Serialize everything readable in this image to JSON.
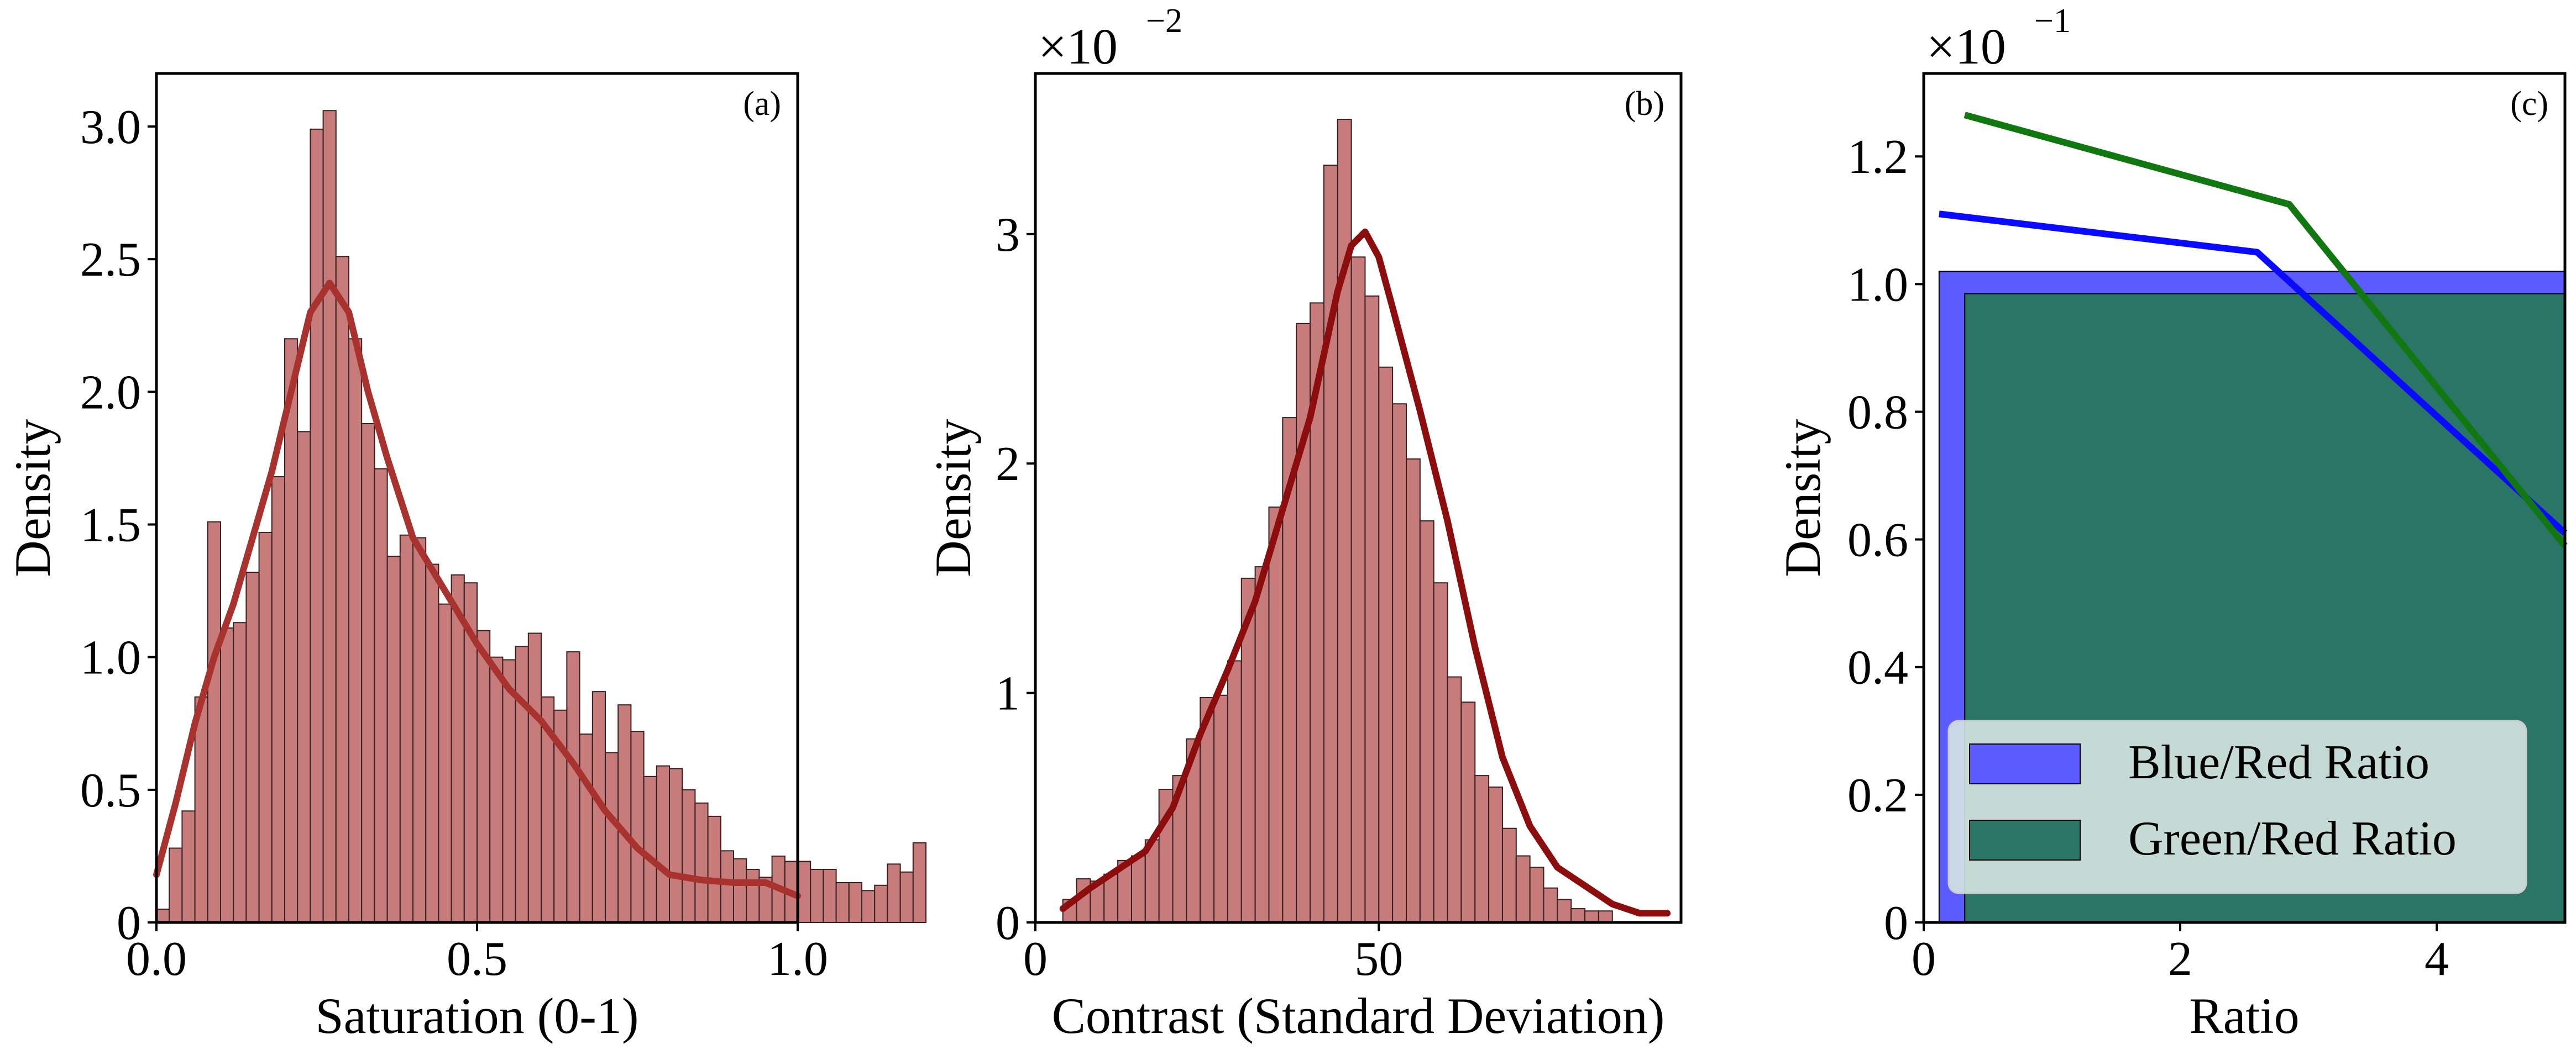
{
  "colors": {
    "hist_fill": "#c77b7b",
    "hist_edge": "#3a1f1f",
    "kde_a": "#a8322d",
    "kde_b": "#8b0d0d",
    "blue_fill": "#5b5bff",
    "green_fill": "#2a7566",
    "blue_line": "#0a0aff",
    "green_line": "#117711",
    "legend_bg": "#d6e4e1"
  },
  "chart_data": [
    {
      "type": "histogram",
      "panel_label": "(a)",
      "xlabel": "Saturation (0-1)",
      "ylabel": "Density",
      "xlim": [
        0,
        1
      ],
      "ylim": [
        0,
        3.2
      ],
      "xticks": [
        "0.0",
        "0.5",
        "1.0"
      ],
      "yticks": [
        "0",
        "0.5",
        "1.0",
        "1.5",
        "2.0",
        "2.5",
        "3.0"
      ],
      "bin_width": 0.02,
      "bin_starts_at": 0.0,
      "densities": [
        0.05,
        0.28,
        0.42,
        0.85,
        1.51,
        1.11,
        1.13,
        1.32,
        1.47,
        1.68,
        2.2,
        1.85,
        2.99,
        3.06,
        2.51,
        2.2,
        1.88,
        1.71,
        1.38,
        1.46,
        1.45,
        1.35,
        1.2,
        1.31,
        1.28,
        1.1,
        1.0,
        0.99,
        1.04,
        1.09,
        0.85,
        0.8,
        1.02,
        0.71,
        0.87,
        0.64,
        0.82,
        0.72,
        0.55,
        0.59,
        0.58,
        0.5,
        0.45,
        0.4,
        0.27,
        0.24,
        0.2,
        0.17,
        0.25,
        0.23,
        0.23,
        0.2,
        0.2,
        0.15,
        0.15,
        0.12,
        0.14,
        0.22,
        0.19,
        0.3
      ],
      "kde": {
        "x": [
          0.0,
          0.03,
          0.06,
          0.09,
          0.12,
          0.15,
          0.18,
          0.21,
          0.24,
          0.27,
          0.3,
          0.33,
          0.36,
          0.4,
          0.45,
          0.5,
          0.55,
          0.6,
          0.65,
          0.7,
          0.75,
          0.8,
          0.85,
          0.9,
          0.95,
          1.0
        ],
        "y": [
          0.18,
          0.45,
          0.75,
          1.0,
          1.2,
          1.45,
          1.7,
          2.0,
          2.3,
          2.41,
          2.3,
          2.0,
          1.75,
          1.45,
          1.25,
          1.05,
          0.88,
          0.76,
          0.6,
          0.42,
          0.28,
          0.18,
          0.16,
          0.15,
          0.15,
          0.1
        ]
      }
    },
    {
      "type": "histogram",
      "panel_label": "(b)",
      "xlabel": "Contrast (Standard Deviation)",
      "ylabel": "Density",
      "multiplier_base": "×10",
      "multiplier_exp": "−2",
      "xlim": [
        0,
        94
      ],
      "ylim": [
        0,
        3.7
      ],
      "xticks": [
        "0",
        "50"
      ],
      "yticks": [
        "0",
        "1",
        "2",
        "3"
      ],
      "bin_width": 2.0,
      "bin_starts_at": 4.0,
      "densities": [
        0.1,
        0.19,
        0.18,
        0.21,
        0.27,
        0.29,
        0.36,
        0.58,
        0.64,
        0.8,
        0.98,
        0.99,
        1.14,
        1.5,
        1.55,
        1.81,
        2.2,
        2.61,
        2.7,
        3.3,
        3.5,
        2.9,
        2.73,
        2.42,
        2.26,
        2.02,
        1.75,
        1.48,
        1.07,
        0.96,
        0.64,
        0.59,
        0.41,
        0.29,
        0.24,
        0.15,
        0.1,
        0.06,
        0.05,
        0.05
      ],
      "kde": {
        "x": [
          4,
          8,
          12,
          16,
          20,
          24,
          28,
          32,
          36,
          40,
          44,
          46,
          48,
          50,
          52,
          56,
          60,
          64,
          68,
          72,
          76,
          80,
          84,
          88,
          92
        ],
        "y": [
          0.06,
          0.15,
          0.23,
          0.31,
          0.5,
          0.82,
          1.1,
          1.4,
          1.8,
          2.2,
          2.75,
          2.95,
          3.01,
          2.9,
          2.68,
          2.23,
          1.75,
          1.2,
          0.72,
          0.42,
          0.24,
          0.16,
          0.08,
          0.04,
          0.04
        ]
      }
    },
    {
      "type": "area",
      "panel_label": "(c)",
      "xlabel": "Ratio",
      "ylabel": "Density",
      "multiplier_base": "×10",
      "multiplier_exp": "−1",
      "xlim": [
        0,
        5
      ],
      "ylim": [
        0,
        1.33
      ],
      "xticks": [
        "0",
        "2",
        "4"
      ],
      "yticks": [
        "0",
        "0.2",
        "0.4",
        "0.6",
        "0.8",
        "1.0",
        "1.2"
      ],
      "series": [
        {
          "name": "Blue/Red Ratio",
          "bar": {
            "x0": 0.12,
            "x1": 5.0,
            "height": 1.02
          },
          "line": {
            "x": [
              0.12,
              2.6,
              5.0
            ],
            "y": [
              1.11,
              1.05,
              0.61
            ]
          }
        },
        {
          "name": "Green/Red Ratio",
          "bar": {
            "x0": 0.32,
            "x1": 5.0,
            "height": 0.985
          },
          "line": {
            "x": [
              0.32,
              2.85,
              5.0
            ],
            "y": [
              1.265,
              1.125,
              0.59
            ]
          }
        }
      ],
      "legend_position": "lower-right"
    }
  ]
}
